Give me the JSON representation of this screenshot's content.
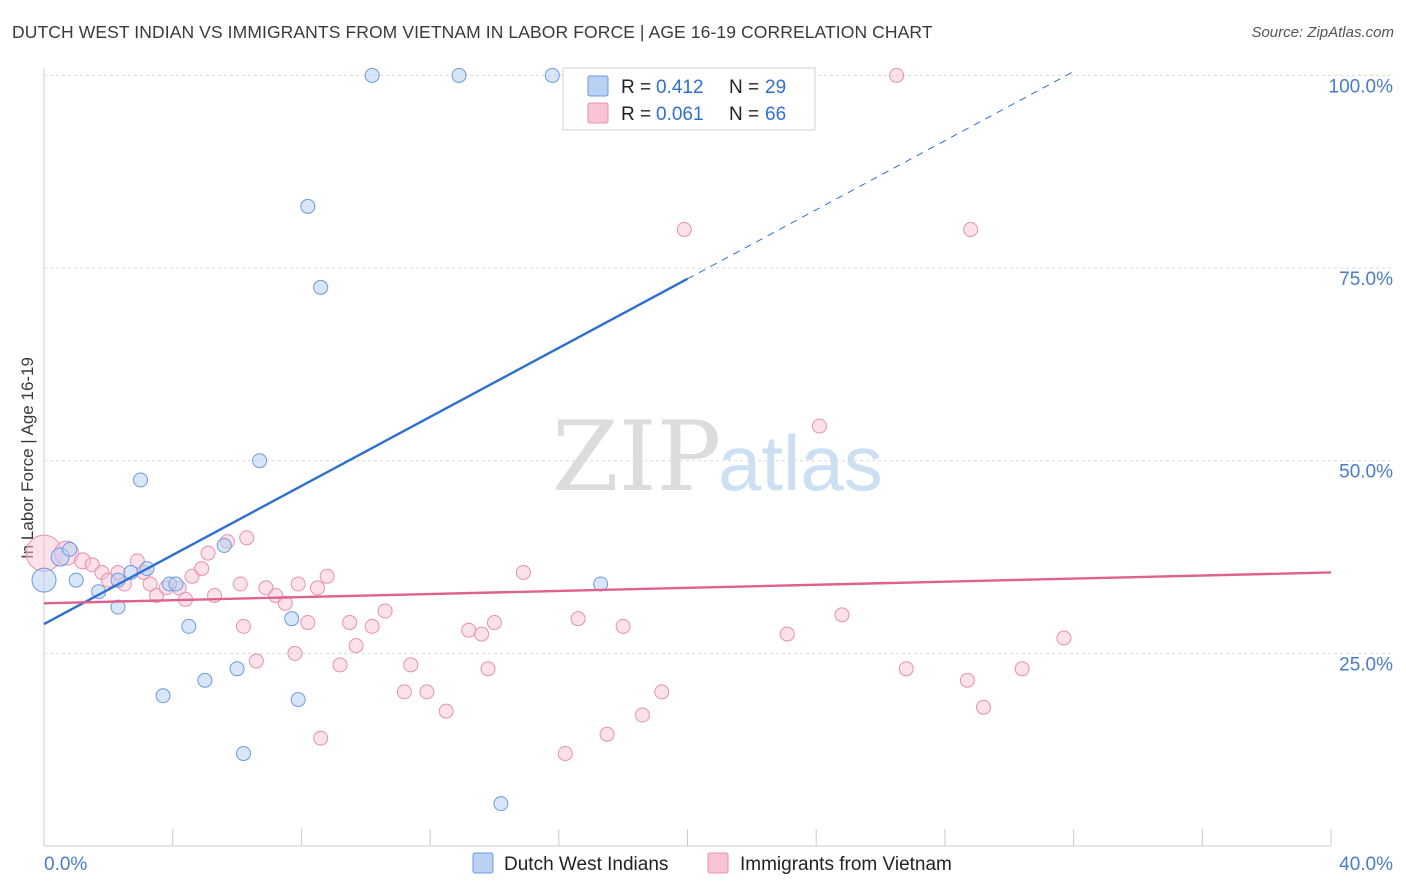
{
  "title": "DUTCH WEST INDIAN VS IMMIGRANTS FROM VIETNAM IN LABOR FORCE | AGE 16-19 CORRELATION CHART",
  "source": "Source: ZipAtlas.com",
  "watermark": {
    "zip": "ZIP",
    "atlas": "atlas"
  },
  "colors": {
    "blue": "#2f6fd0",
    "blue_fill": "#b9d1f2",
    "pink": "#e0608e",
    "pink_fill": "#f6c4d5",
    "grid": "#d9d9d9",
    "tick_label": "#4a7cc7"
  },
  "legend": {
    "rows": [
      {
        "series": "blue",
        "r_label": "R =",
        "r_value": "0.412",
        "n_label": "N =",
        "n_value": "29"
      },
      {
        "series": "pink",
        "r_label": "R =",
        "r_value": "0.061",
        "n_label": "N =",
        "n_value": "66"
      }
    ]
  },
  "chart_data": {
    "type": "scatter",
    "title": "DUTCH WEST INDIAN VS IMMIGRANTS FROM VIETNAM IN LABOR FORCE | AGE 16-19 CORRELATION CHART",
    "xlabel": "",
    "ylabel": "In Labor Force | Age 16-19",
    "xlim": [
      0,
      40
    ],
    "ylim": [
      0,
      102
    ],
    "x_tick_labels": [
      {
        "value": 0,
        "label": "0.0%"
      },
      {
        "value": 40,
        "label": "40.0%"
      }
    ],
    "y_tick_labels": [
      {
        "value": 25,
        "label": "25.0%"
      },
      {
        "value": 50,
        "label": "50.0%"
      },
      {
        "value": 75,
        "label": "75.0%"
      },
      {
        "value": 100,
        "label": "100.0%"
      }
    ],
    "series": [
      {
        "name": "Dutch West Indians",
        "color": "#2f6fd0",
        "r": 0.412,
        "n": 29,
        "trend": {
          "x0": 0,
          "y0": 28.8,
          "x1": 20,
          "y1": 73.6,
          "dashed_to_x": 32,
          "dashed_to_y": 100.5
        },
        "points": [
          [
            0,
            34.5,
            12
          ],
          [
            0.5,
            37.5,
            9
          ],
          [
            0.8,
            38.5,
            7
          ],
          [
            1,
            34.5,
            7
          ],
          [
            1.7,
            33,
            7
          ],
          [
            2.3,
            34.5,
            7
          ],
          [
            2.3,
            31,
            7
          ],
          [
            2.7,
            35.5,
            7
          ],
          [
            3,
            47.5,
            7
          ],
          [
            3.2,
            36,
            7
          ],
          [
            3.7,
            19.5,
            7
          ],
          [
            3.9,
            34,
            7
          ],
          [
            4.1,
            34,
            7
          ],
          [
            4.5,
            28.5,
            7
          ],
          [
            5,
            21.5,
            7
          ],
          [
            5.6,
            39,
            7
          ],
          [
            6,
            23,
            7
          ],
          [
            6.2,
            12,
            7
          ],
          [
            6.7,
            50,
            7
          ],
          [
            7.7,
            29.5,
            7
          ],
          [
            7.9,
            19,
            7
          ],
          [
            8.2,
            83,
            7
          ],
          [
            8.6,
            72.5,
            7
          ],
          [
            10.2,
            100,
            7
          ],
          [
            12.9,
            100,
            7
          ],
          [
            14.2,
            5.5,
            7
          ],
          [
            15.8,
            100,
            7
          ],
          [
            17.3,
            34,
            7
          ]
        ]
      },
      {
        "name": "Immigrants from Vietnam",
        "color": "#e0608e",
        "r": 0.061,
        "n": 66,
        "trend": {
          "x0": 0,
          "y0": 31.5,
          "x1": 40,
          "y1": 35.5
        },
        "points": [
          [
            0,
            38,
            18
          ],
          [
            0.7,
            38,
            12
          ],
          [
            1.2,
            37,
            8
          ],
          [
            1.5,
            36.5,
            7
          ],
          [
            1.8,
            35.5,
            7
          ],
          [
            2,
            34.5,
            7
          ],
          [
            2.3,
            35.5,
            7
          ],
          [
            2.5,
            34,
            7
          ],
          [
            2.9,
            37,
            7
          ],
          [
            3.1,
            35.5,
            7
          ],
          [
            3.3,
            34,
            7
          ],
          [
            3.5,
            32.5,
            7
          ],
          [
            3.8,
            33.5,
            7
          ],
          [
            4.2,
            33.5,
            7
          ],
          [
            4.4,
            32,
            7
          ],
          [
            4.6,
            35,
            7
          ],
          [
            4.9,
            36,
            7
          ],
          [
            5.1,
            38,
            7
          ],
          [
            5.3,
            32.5,
            7
          ],
          [
            5.7,
            39.5,
            7
          ],
          [
            6.3,
            40,
            7
          ],
          [
            6.1,
            34,
            7
          ],
          [
            6.2,
            28.5,
            7
          ],
          [
            6.6,
            24,
            7
          ],
          [
            6.9,
            33.5,
            7
          ],
          [
            7.2,
            32.5,
            7
          ],
          [
            7.5,
            31.5,
            7
          ],
          [
            7.8,
            25,
            7
          ],
          [
            7.9,
            34,
            7
          ],
          [
            8.2,
            29,
            7
          ],
          [
            8.5,
            33.5,
            7
          ],
          [
            8.8,
            35,
            7
          ],
          [
            8.6,
            14,
            7
          ],
          [
            9.2,
            23.5,
            7
          ],
          [
            9.5,
            29,
            7
          ],
          [
            9.7,
            26,
            7
          ],
          [
            10.2,
            28.5,
            7
          ],
          [
            10.6,
            30.5,
            7
          ],
          [
            11.2,
            20,
            7
          ],
          [
            11.4,
            23.5,
            7
          ],
          [
            11.9,
            20,
            7
          ],
          [
            12.5,
            17.5,
            7
          ],
          [
            13.2,
            28,
            7
          ],
          [
            13.6,
            27.5,
            7
          ],
          [
            13.8,
            23,
            7
          ],
          [
            14,
            29,
            7
          ],
          [
            14.9,
            35.5,
            7
          ],
          [
            16.2,
            12,
            7
          ],
          [
            16.6,
            29.5,
            7
          ],
          [
            17.5,
            14.5,
            7
          ],
          [
            18,
            28.5,
            7
          ],
          [
            18.6,
            17,
            7
          ],
          [
            19.2,
            20,
            7
          ],
          [
            19.9,
            80,
            7
          ],
          [
            23.1,
            27.5,
            7
          ],
          [
            24.1,
            54.5,
            7
          ],
          [
            24.8,
            30,
            7
          ],
          [
            26.5,
            100,
            7
          ],
          [
            26.8,
            23,
            7
          ],
          [
            28.8,
            80,
            7
          ],
          [
            28.7,
            21.5,
            7
          ],
          [
            29.2,
            18,
            7
          ],
          [
            30.4,
            23,
            7
          ],
          [
            31.7,
            27,
            7
          ]
        ]
      }
    ]
  },
  "bottom_legend": {
    "items": [
      {
        "series": "blue",
        "label": "Dutch West Indians"
      },
      {
        "series": "pink",
        "label": "Immigrants from Vietnam"
      }
    ]
  }
}
